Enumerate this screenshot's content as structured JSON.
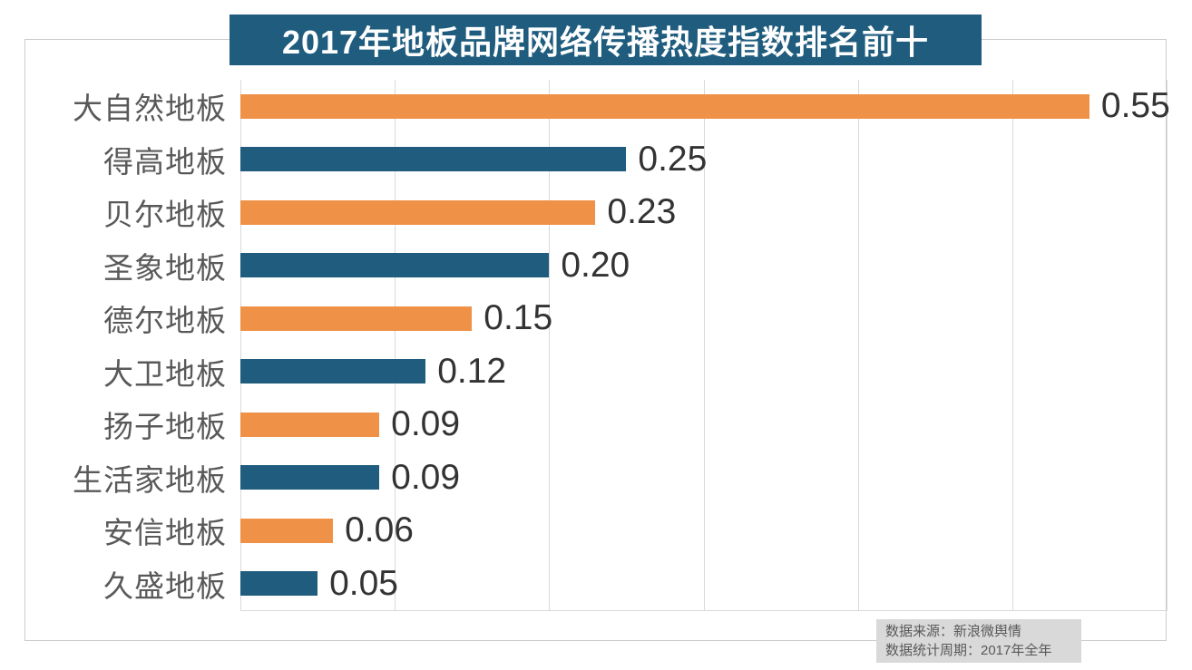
{
  "chart_data": {
    "type": "bar",
    "orientation": "horizontal",
    "title": "2017年地板品牌网络传播热度指数排名前十",
    "categories": [
      "大自然地板",
      "得高地板",
      "贝尔地板",
      "圣象地板",
      "德尔地板",
      "大卫地板",
      "扬子地板",
      "生活家地板",
      "安信地板",
      "久盛地板"
    ],
    "values": [
      0.55,
      0.25,
      0.23,
      0.2,
      0.15,
      0.12,
      0.09,
      0.09,
      0.06,
      0.05
    ],
    "value_labels": [
      "0.55",
      "0.25",
      "0.23",
      "0.20",
      "0.15",
      "0.12",
      "0.09",
      "0.09",
      "0.06",
      "0.05"
    ],
    "xlim": [
      0,
      0.6
    ],
    "grid_interval": 0.1,
    "grid": true,
    "legend_position": "none",
    "colors": {
      "odd_rank_bar": "#EF9248",
      "even_rank_bar": "#1F5C7E",
      "title_background": "#1F5C7E",
      "title_text": "#FFFFFF",
      "gridline": "#D9D9D9",
      "category_label": "#595959",
      "value_label": "#333333"
    }
  },
  "source_note": {
    "line1": "数据来源：新浪微舆情",
    "line2": "数据统计周期：2017年全年",
    "background": "#D9D9D9",
    "text_color": "#595959"
  }
}
